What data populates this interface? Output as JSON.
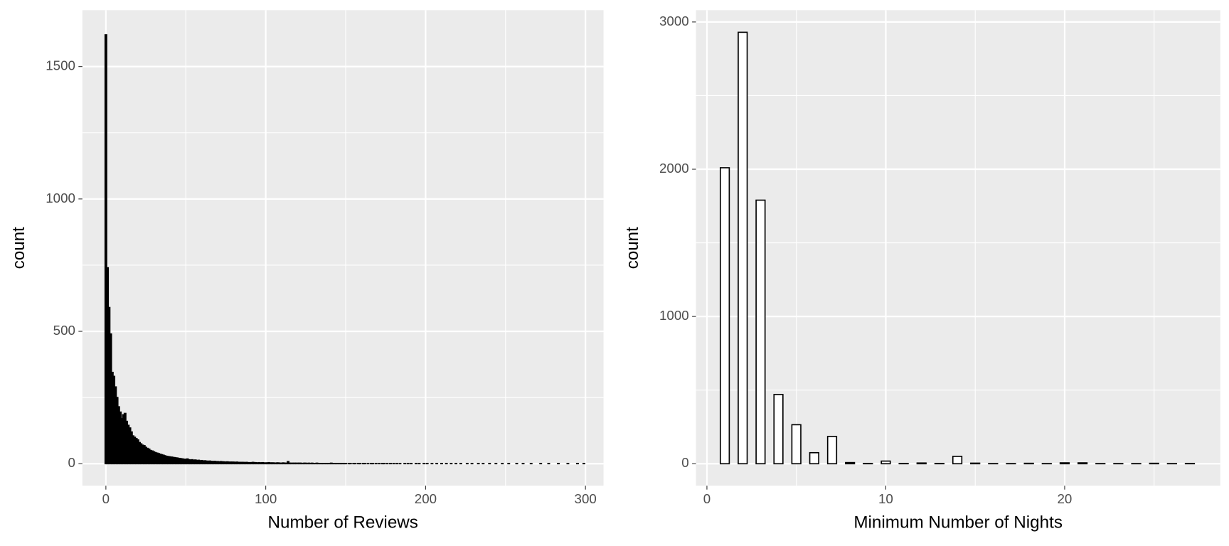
{
  "chart_data": [
    {
      "type": "histogram",
      "x_label": "Number of Reviews",
      "y_label": "count",
      "fill": "#000000",
      "color": "#000000",
      "background": "#ebebeb",
      "grid": true,
      "xlim": [
        -14.7,
        311.3
      ],
      "ylim": [
        -83,
        1713
      ],
      "xticks": [
        0,
        100,
        200,
        300
      ],
      "yticks": [
        0,
        500,
        1000,
        1500
      ],
      "minor_xticks": [
        50,
        150,
        250
      ],
      "minor_yticks": [
        250,
        750,
        1250
      ],
      "bins": [
        -0.5,
        0.5,
        1.5,
        2.5,
        3.5,
        4.5,
        5.5,
        6.5,
        7.5,
        8.5,
        9.5,
        10.5,
        11.5,
        12.5,
        13.5,
        14.5,
        15.5,
        16.5,
        17.5,
        18.5,
        19.5,
        20.5,
        21.5,
        22.5,
        23.5,
        24.5,
        25.5,
        26.5,
        27.5,
        28.5,
        29.5,
        30.5,
        31.5,
        32.5,
        33.5,
        34.5,
        35.5,
        36.5,
        37.5,
        38.5,
        39.5,
        40.5,
        41.5,
        42.5,
        43.5,
        44.5,
        45.5,
        46.5,
        47.5,
        48.5,
        49.5,
        50.5,
        51.5,
        52.5,
        53.5,
        54.5,
        55.5,
        56.5,
        57.5,
        58.5,
        59.5,
        60.5,
        61.5,
        62.5,
        63.5,
        64.5,
        65.5,
        66.5,
        67.5,
        68.5,
        69.5,
        70.5,
        71.5,
        72.5,
        73.5,
        74.5,
        75.5,
        76.5,
        77.5,
        78.5,
        79.5,
        80.5,
        81.5,
        82.5,
        83.5,
        84.5,
        85.5,
        86.5,
        87.5,
        88.5,
        89.5,
        90.5,
        91.5,
        92.5,
        93.5,
        94.5,
        95.5,
        96.5,
        97.5,
        98.5,
        99.5,
        100.5,
        101.5,
        102.5,
        103.5,
        104.5,
        105.5,
        106.5,
        107.5,
        108.5,
        109.5,
        110.5,
        111.5,
        112.5,
        113.5,
        114.5,
        115.5,
        116.5,
        117.5,
        118.5,
        119.5,
        120.5,
        121.5,
        122.5,
        123.5,
        124.5,
        125.5,
        126.5,
        127.5,
        128.5,
        129.5,
        130.5,
        131.5,
        132.5,
        133.5,
        134.5,
        135.5,
        136.5,
        137.5,
        138.5,
        139.5,
        140.5,
        141.5,
        142.5,
        143.5,
        144.5,
        145.5,
        146.5,
        147.5,
        148.5,
        149.5,
        150.5,
        151.5,
        152.5,
        153.5,
        154.5,
        155.5,
        156.5,
        157.5,
        158.5,
        159.5,
        160.5,
        161.5,
        162.5,
        163.5,
        164.5,
        165.5,
        166.5,
        167.5,
        168.5,
        169.5,
        170.5,
        171.5,
        172.5,
        173.5,
        174.5,
        175.5,
        176.5,
        177.5,
        178.5,
        179.5,
        180.5,
        181.5,
        182.5,
        183.5,
        184.5,
        185.5,
        186.5,
        187.5,
        188.5,
        189.5,
        190.5,
        191.5,
        192.5,
        193.5,
        194.5,
        195.5,
        196.5,
        197.5,
        198.5,
        199.5,
        200.5,
        201.5,
        202.5,
        203.5,
        204.5,
        205.5,
        206.5,
        207.5,
        208.5,
        209.5,
        210.5,
        211.5,
        212.5,
        213.5,
        214.5,
        215.5,
        216.5,
        217.5,
        218.5,
        219.5,
        220.5,
        221.5,
        222.5,
        223.5,
        224.5,
        225.5,
        226.5,
        227.5,
        228.5,
        229.5,
        230.5,
        231.5,
        232.5,
        233.5,
        234.5,
        235.5,
        236.5,
        237.5,
        238.5,
        239.5,
        240.5,
        241.5,
        242.5,
        243.5,
        244.5,
        245.5,
        246.5,
        247.5,
        248.5,
        249.5,
        250.5,
        251.5,
        252.5,
        253.5,
        254.5,
        255.5,
        256.5,
        257.5,
        258.5,
        259.5,
        260.5,
        261.5,
        262.5,
        263.5,
        264.5,
        265.5,
        266.5,
        267.5,
        268.5,
        269.5,
        270.5,
        271.5,
        272.5,
        273.5,
        274.5,
        275.5,
        276.5,
        277.5,
        278.5,
        279.5,
        280.5,
        281.5,
        282.5,
        283.5,
        284.5,
        285.5,
        286.5,
        287.5,
        288.5,
        289.5,
        290.5,
        291.5,
        292.5,
        293.5,
        294.5,
        295.5,
        296.5,
        297.5,
        298.5,
        299.5
      ],
      "values": [
        1620,
        740,
        590,
        490,
        345,
        330,
        290,
        250,
        215,
        195,
        170,
        185,
        190,
        160,
        145,
        135,
        120,
        105,
        100,
        95,
        90,
        80,
        75,
        70,
        68,
        62,
        58,
        55,
        50,
        48,
        45,
        42,
        40,
        38,
        36,
        34,
        32,
        30,
        28,
        27,
        26,
        25,
        24,
        23,
        22,
        21,
        20,
        19,
        18,
        17,
        16,
        18,
        15,
        14,
        15,
        13,
        14,
        12,
        13,
        11,
        12,
        10,
        11,
        10,
        9,
        10,
        9,
        8,
        9,
        8,
        8,
        7,
        8,
        7,
        7,
        6,
        7,
        6,
        6,
        6,
        6,
        5,
        6,
        5,
        5,
        5,
        5,
        4,
        5,
        4,
        4,
        4,
        5,
        4,
        4,
        3,
        4,
        3,
        4,
        3,
        3,
        3,
        4,
        3,
        3,
        3,
        2,
        3,
        3,
        2,
        2,
        3,
        2,
        2,
        8,
        2,
        2,
        2,
        2,
        2,
        2,
        2,
        2,
        1,
        2,
        2,
        1,
        2,
        1,
        2,
        1,
        1,
        2,
        1,
        1,
        1,
        1,
        1,
        1,
        1,
        1,
        2,
        1,
        1,
        1,
        1,
        1,
        1,
        1,
        1,
        1,
        0,
        1,
        1,
        0,
        1,
        1,
        0,
        1,
        1,
        0,
        1,
        1,
        0,
        1,
        0,
        1,
        1,
        0,
        1,
        0,
        1,
        0,
        1,
        1,
        0,
        1,
        0,
        1,
        0,
        1,
        0,
        1,
        0,
        1,
        0,
        0,
        1,
        0,
        1,
        0,
        1,
        0,
        0,
        1,
        0,
        1,
        0,
        0,
        1,
        0,
        1,
        0,
        0,
        1,
        0,
        0,
        1,
        0,
        0,
        1,
        0,
        0,
        1,
        0,
        0,
        1,
        0,
        0,
        1,
        0,
        0,
        1,
        0,
        0,
        0,
        1,
        0,
        0,
        1,
        0,
        0,
        0,
        1,
        0,
        0,
        1,
        0,
        0,
        0,
        1,
        0,
        0,
        0,
        1,
        0,
        0,
        0,
        1,
        0,
        0,
        0,
        1,
        0,
        0,
        0,
        0,
        1,
        0,
        0,
        0,
        1,
        0,
        0,
        0,
        0,
        1,
        0,
        0,
        0,
        0,
        0,
        1,
        0,
        0,
        0,
        0,
        1,
        0,
        0,
        0,
        0,
        0,
        1,
        0,
        0,
        0,
        0,
        0,
        1,
        0,
        0,
        0,
        0,
        0,
        1,
        0,
        0,
        0,
        1
      ]
    },
    {
      "type": "histogram",
      "x_label": "Minimum Number of Nights",
      "y_label": "count",
      "fill": "#ffffff",
      "color": "#000000",
      "background": "#ebebeb",
      "grid": true,
      "xlim": [
        -0.61,
        28.7
      ],
      "ylim": [
        -149,
        3080
      ],
      "xticks": [
        0,
        10,
        20
      ],
      "yticks": [
        0,
        1000,
        2000,
        3000
      ],
      "minor_xticks": [
        5,
        15,
        25
      ],
      "minor_yticks": [
        500,
        1500,
        2500
      ],
      "bins": [
        0.75,
        1.25,
        1.75,
        2.25,
        2.75,
        3.25,
        3.75,
        4.25,
        4.75,
        5.25,
        5.75,
        6.25,
        6.75,
        7.25,
        7.75,
        8.25,
        8.75,
        9.25,
        9.75,
        10.25,
        10.75,
        11.25,
        11.75,
        12.25,
        12.75,
        13.25,
        13.75,
        14.25,
        14.75,
        15.25,
        15.75,
        16.25,
        16.75,
        17.25,
        17.75,
        18.25,
        18.75,
        19.25,
        19.75,
        20.25,
        20.75,
        21.25,
        21.75,
        22.25,
        22.75,
        23.25,
        23.75,
        24.25,
        24.75,
        25.25,
        25.75,
        26.25,
        26.75,
        27.25
      ],
      "values": [
        2010,
        0,
        2930,
        0,
        1790,
        0,
        470,
        0,
        265,
        0,
        75,
        0,
        185,
        0,
        8,
        0,
        2,
        0,
        18,
        0,
        2,
        0,
        5,
        0,
        2,
        0,
        50,
        0,
        4,
        0,
        1,
        0,
        1,
        0,
        3,
        0,
        1,
        0,
        6,
        0,
        6,
        0,
        1,
        0,
        1,
        0,
        1,
        0,
        3,
        0,
        1,
        0,
        2
      ]
    }
  ]
}
